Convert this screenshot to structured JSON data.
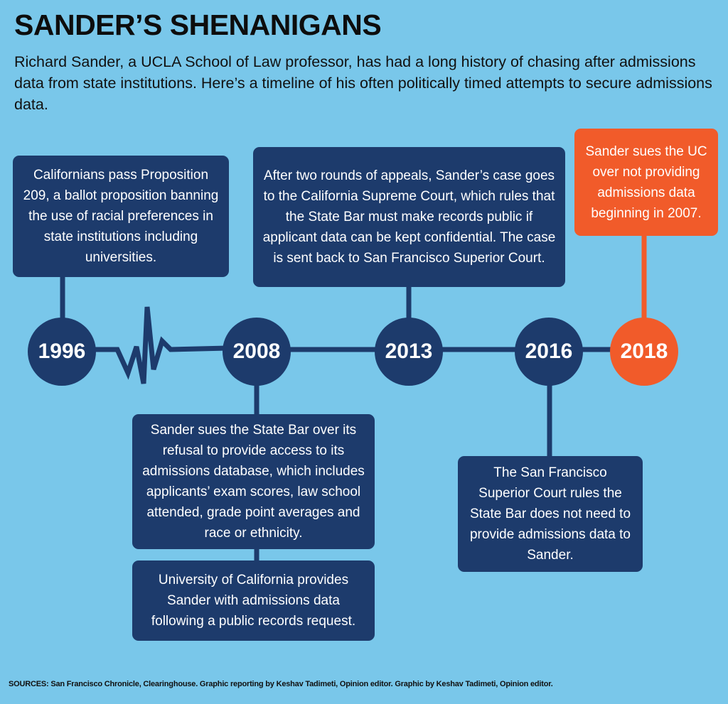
{
  "header": {
    "title": "SANDER’S SHENANIGANS",
    "intro": "Richard Sander, a UCLA School of Law professor, has had a long history of chasing after admissions data from state institutions. Here’s a timeline of his often politically timed attempts to secure admissions data."
  },
  "timeline": [
    {
      "year": "1996",
      "events": [
        "Californians pass Proposition 209, a ballot proposition banning the use of racial preferences in state institutions including universities."
      ]
    },
    {
      "year": "2008",
      "events": [
        "Sander sues the State Bar over its refusal to provide access to its admissions database, which includes applicants’ exam scores, law school attended, grade point averages and race or ethnicity.",
        "University of California provides Sander with admissions data following a public records request."
      ]
    },
    {
      "year": "2013",
      "events": [
        "After two rounds of appeals, Sander’s case goes to the California Supreme Court, which rules that the State Bar must make records public if applicant data can be kept confidential. The case is sent back to San Francisco Superior Court."
      ]
    },
    {
      "year": "2016",
      "events": [
        "The San Francisco Superior Court rules the State Bar does not need to provide admissions data to Sander."
      ]
    },
    {
      "year": "2018",
      "events": [
        "Sander sues the UC over not providing admissions data beginning in 2007."
      ]
    }
  ],
  "sources": "SOURCES: San Francisco Chronicle, Clearinghouse. Graphic reporting by Keshav Tadimeti, Opinion editor. Graphic by Keshav Tadimeti, Opinion editor."
}
